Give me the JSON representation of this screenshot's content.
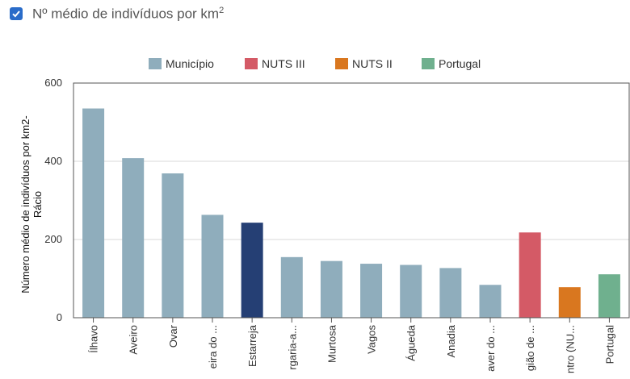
{
  "header": {
    "checkbox_checked": true,
    "label": "Nº médio de indivíduos por km",
    "label_sup": "2"
  },
  "colors": {
    "municipio": "#8fadbc",
    "highlight": "#253f74",
    "nuts3": "#d45a66",
    "nuts2": "#d9771f",
    "portugal": "#6fb08e",
    "checkbox": "#2a6cc9"
  },
  "chart_data": {
    "type": "bar",
    "ylabel_lines": [
      "Número médio de indivíduos por km2-",
      "Rácio"
    ],
    "ylim": [
      0,
      600
    ],
    "yticks": [
      0,
      200,
      400,
      600
    ],
    "grid": true,
    "legend_position": "top-center",
    "legend": [
      {
        "name": "Município",
        "color": "#8fadbc"
      },
      {
        "name": "NUTS III",
        "color": "#d45a66"
      },
      {
        "name": "NUTS II",
        "color": "#d9771f"
      },
      {
        "name": "Portugal",
        "color": "#6fb08e"
      }
    ],
    "bars": [
      {
        "label": "Ílhavo",
        "value": 535,
        "color": "#8fadbc"
      },
      {
        "label": "Aveiro",
        "value": 408,
        "color": "#8fadbc"
      },
      {
        "label": "Ovar",
        "value": 369,
        "color": "#8fadbc"
      },
      {
        "label": "eira do ...",
        "value": 263,
        "color": "#8fadbc"
      },
      {
        "label": "Estarreja",
        "value": 243,
        "color": "#253f74"
      },
      {
        "label": "rgaria-a...",
        "value": 155,
        "color": "#8fadbc"
      },
      {
        "label": "Murtosa",
        "value": 145,
        "color": "#8fadbc"
      },
      {
        "label": "Vagos",
        "value": 138,
        "color": "#8fadbc"
      },
      {
        "label": "Águeda",
        "value": 135,
        "color": "#8fadbc"
      },
      {
        "label": "Anadia",
        "value": 127,
        "color": "#8fadbc"
      },
      {
        "label": "aver do ...",
        "value": 84,
        "color": "#8fadbc"
      },
      {
        "label": "gião de ...",
        "value": 218,
        "color": "#d45a66"
      },
      {
        "label": "ntro (NU...",
        "value": 78,
        "color": "#d9771f"
      },
      {
        "label": "Portugal",
        "value": 111,
        "color": "#6fb08e"
      }
    ]
  }
}
